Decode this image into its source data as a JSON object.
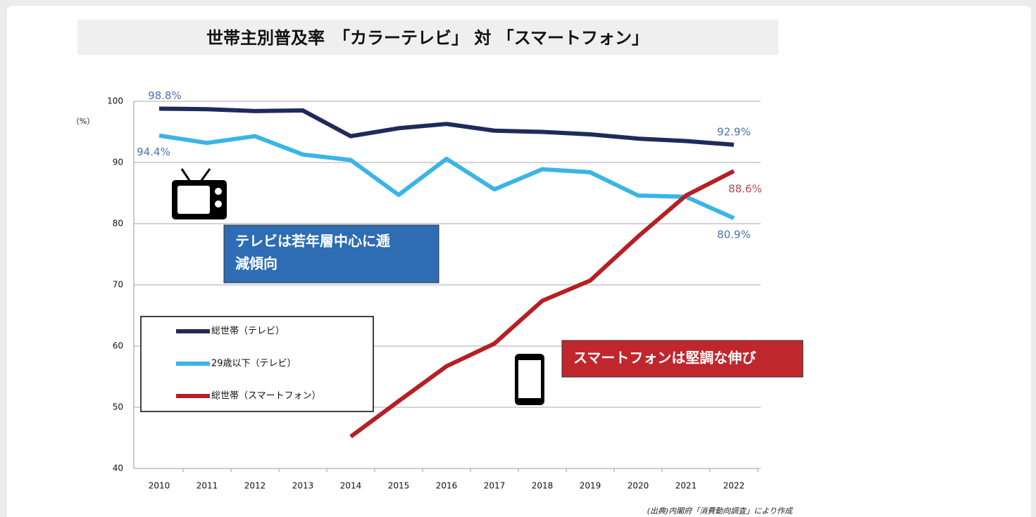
{
  "chart_data": {
    "type": "line",
    "title": "世帯主別普及率　「カラーテレビ」 対 「スマートフォン」",
    "y_label": "（%）",
    "source": "(出典)内閣府「消費動向調査」により作成",
    "categories": [
      "2010",
      "2011",
      "2012",
      "2013",
      "2014",
      "2015",
      "2016",
      "2017",
      "2018",
      "2019",
      "2020",
      "2021",
      "2022"
    ],
    "series": [
      {
        "name": "総世帯（テレビ）",
        "color": "#1f2a5c",
        "values": [
          98.8,
          98.7,
          98.4,
          98.5,
          94.3,
          95.6,
          96.3,
          95.2,
          95.0,
          94.6,
          93.9,
          93.5,
          92.9
        ],
        "value_labels": [
          "98.8%",
          null,
          null,
          null,
          null,
          null,
          null,
          null,
          null,
          null,
          null,
          null,
          "92.9%"
        ]
      },
      {
        "name": "29歳以下（テレビ）",
        "color": "#3bb4e6",
        "values": [
          94.4,
          93.2,
          94.3,
          91.3,
          90.4,
          84.7,
          90.6,
          85.6,
          88.9,
          88.4,
          84.6,
          84.4,
          80.9
        ],
        "value_labels": [
          "94.4%",
          null,
          null,
          null,
          null,
          null,
          null,
          null,
          null,
          null,
          null,
          null,
          "80.9%"
        ]
      },
      {
        "name": "総世帯（スマートフォン）",
        "color": "#b52025",
        "values": [
          null,
          null,
          null,
          null,
          45.2,
          51.0,
          56.7,
          60.4,
          67.4,
          70.7,
          77.9,
          84.6,
          88.6
        ],
        "value_labels": [
          null,
          null,
          null,
          null,
          null,
          null,
          null,
          null,
          null,
          null,
          null,
          null,
          "88.6%"
        ]
      }
    ],
    "ylim": [
      40,
      100
    ],
    "yticks": [
      40,
      50,
      60,
      70,
      80,
      90,
      100
    ],
    "grid": true,
    "annotations": [
      {
        "lines": [
          "テレビは若年層中心に逓",
          "減傾向"
        ],
        "color": "#2e6db4"
      },
      {
        "lines": [
          "スマートフォンは堅調な伸び"
        ],
        "color": "#c0272d"
      }
    ]
  }
}
